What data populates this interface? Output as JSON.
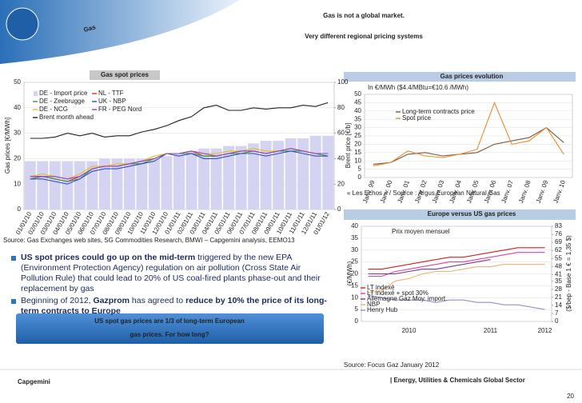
{
  "header": {
    "tag": "Gas",
    "title_lines": [
      "Gas is not a global market.",
      "Very different regional pricing systems"
    ]
  },
  "chart_data": [
    {
      "type": "line",
      "title": "Gas spot prices",
      "y_label": "Gas prices [€/MWh]",
      "y2_label": "Brent price [€/b]",
      "categories": [
        "01/01/10",
        "02/01/10",
        "03/01/10",
        "04/01/10",
        "05/01/10",
        "06/01/10",
        "07/01/10",
        "08/01/10",
        "09/01/10",
        "10/01/10",
        "11/01/10",
        "12/01/10",
        "01/01/11",
        "02/01/11",
        "03/01/11",
        "04/01/11",
        "05/01/11",
        "06/01/11",
        "07/01/11",
        "08/01/11",
        "09/01/11",
        "10/01/11",
        "11/01/11",
        "12/01/11",
        "01/01/12"
      ],
      "ylim": [
        0,
        50
      ],
      "yticks": [
        0,
        10,
        20,
        30,
        40,
        50
      ],
      "y2lim": [
        0,
        100
      ],
      "y2ticks": [
        0,
        20,
        40,
        60,
        80,
        100
      ],
      "grid": true,
      "series": [
        {
          "name": "DE - Import price",
          "color": "#d4d4f2",
          "mark": "bar",
          "values": [
            19,
            19,
            19,
            19,
            19,
            19,
            20,
            20,
            20,
            20,
            20,
            21,
            22,
            23,
            24,
            24,
            25,
            25,
            26,
            27,
            27,
            28,
            28,
            29,
            29
          ]
        },
        {
          "name": "NL - TTF",
          "color": "#e03030",
          "values": [
            13,
            13,
            12,
            11,
            13,
            16,
            17,
            17,
            18,
            19,
            20,
            22,
            22,
            23,
            21,
            21,
            22,
            23,
            23,
            22,
            23,
            24,
            23,
            22,
            22
          ]
        },
        {
          "name": "DE - Zeebrugge",
          "color": "#30a030",
          "values": [
            12,
            13,
            12,
            11,
            12,
            16,
            17,
            17,
            18,
            18,
            20,
            22,
            22,
            22,
            21,
            21,
            22,
            22,
            23,
            22,
            23,
            23,
            23,
            22,
            21
          ]
        },
        {
          "name": "UK - NBP",
          "color": "#3050c0",
          "values": [
            12,
            12,
            11,
            10,
            12,
            15,
            16,
            16,
            17,
            18,
            19,
            22,
            21,
            22,
            20,
            20,
            21,
            22,
            22,
            21,
            22,
            23,
            22,
            21,
            21
          ]
        },
        {
          "name": "DE - NCG",
          "color": "#e0c020",
          "values": [
            13,
            14,
            13,
            12,
            14,
            17,
            17,
            18,
            18,
            19,
            21,
            22,
            22,
            23,
            22,
            22,
            23,
            23,
            24,
            23,
            23,
            24,
            23,
            22,
            22
          ]
        },
        {
          "name": "FR - PEG Nord",
          "color": "#a040c0",
          "values": [
            13,
            13,
            13,
            12,
            13,
            16,
            17,
            17,
            18,
            19,
            20,
            22,
            22,
            23,
            22,
            21,
            22,
            23,
            23,
            22,
            23,
            24,
            23,
            22,
            22
          ]
        },
        {
          "name": "Brent month ahead",
          "color": "#202020",
          "axis": "y2",
          "values": [
            56,
            56,
            57,
            60,
            58,
            60,
            57,
            58,
            58,
            61,
            63,
            66,
            70,
            73,
            80,
            82,
            78,
            78,
            80,
            79,
            80,
            80,
            82,
            81,
            84
          ]
        }
      ]
    },
    {
      "type": "line",
      "title": "Gas prices evolution",
      "subtitle": "In €/MWh ($4.4/MBtu=€10.6 /MWh)",
      "note": "« Les Echos » / Source : Argus European Natural Gas",
      "categories": [
        "Janv. 99",
        "Janv. 00",
        "Janv. 01",
        "Janv. 02",
        "Janv. 03",
        "Janv. 04",
        "Janv. 05",
        "Janv. 06",
        "Janv. 07",
        "Janv. 08",
        "Janv. 09",
        "Janv. 10"
      ],
      "ylim": [
        0,
        50
      ],
      "yticks": [
        0,
        5,
        10,
        15,
        20,
        25,
        30,
        35,
        40,
        45,
        50
      ],
      "grid": true,
      "series": [
        {
          "name": "Long-term contracts price",
          "color": "#7a5a3a",
          "values": [
            8,
            9,
            14,
            15,
            13,
            14,
            15,
            20,
            22,
            24,
            30,
            21
          ]
        },
        {
          "name": "Spot price",
          "color": "#f08a30",
          "values": [
            7,
            9,
            16,
            13,
            12,
            14,
            17,
            45,
            20,
            22,
            30,
            14
          ]
        }
      ]
    },
    {
      "type": "line",
      "title": "Europe versus US gas prices",
      "subtitle": "Prix moyen mensuel",
      "y_label": "(€/MWh)",
      "y2_label": "($/bep - Base 1 € = 1,35 $)",
      "source": "Source: Focus Gaz January 2012",
      "categories": [
        null,
        null,
        null,
        "2010",
        null,
        null,
        null,
        null,
        null,
        "2011",
        null,
        null,
        null,
        "2012"
      ],
      "ylim": [
        0,
        40
      ],
      "yticks": [
        0,
        5,
        10,
        15,
        20,
        25,
        30,
        35,
        40
      ],
      "y2lim": [
        0,
        83
      ],
      "y2ticks": [
        0,
        7,
        14,
        21,
        28,
        35,
        41,
        48,
        55,
        62,
        69,
        76,
        83
      ],
      "grid": true,
      "series": [
        {
          "name": "LT indexé",
          "color": "#d02020",
          "values": [
            22,
            22,
            23,
            24,
            25,
            26,
            27,
            27,
            28,
            29,
            30,
            31,
            31,
            31
          ]
        },
        {
          "name": "LT indexé + spot 30%",
          "color": "#e040a0",
          "values": [
            19,
            19,
            21,
            22,
            23,
            24,
            25,
            25,
            26,
            27,
            28,
            29,
            29,
            29
          ]
        },
        {
          "name": "Allemagne Gaz Moy. import.",
          "color": "#7a3a8a",
          "values": [
            20,
            20,
            20,
            21,
            22,
            22,
            23,
            24,
            25,
            26,
            null,
            null,
            null,
            null
          ]
        },
        {
          "name": "NBP",
          "color": "#f0b070",
          "values": [
            12,
            13,
            17,
            18,
            20,
            21,
            21,
            22,
            23,
            23,
            24,
            24,
            24,
            24
          ]
        },
        {
          "name": "Henry Hub",
          "color": "#9090d0",
          "values": [
            11,
            10,
            9,
            9,
            9,
            8,
            9,
            9,
            8,
            8,
            7,
            7,
            6,
            5
          ]
        }
      ]
    }
  ],
  "source": "Source: Gas Exchanges web sites, SG Commodities Research, BMWI – Capgemini analysis, EEMO13",
  "bullets": [
    [
      {
        "text": "US spot prices could go up on the mid-term",
        "bold": true
      },
      {
        "text": " triggered by the new EPA (Environment Protection Agency) regulation on air pollution (Cross State Air Pollution Rule) that could lead to 20% of US coal-fired plants phase-out and their replacement by gas",
        "bold": false
      }
    ],
    [
      {
        "text": "Beginning of 2012, ",
        "bold": false
      },
      {
        "text": "Gazprom",
        "bold": true
      },
      {
        "text": " has agreed to ",
        "bold": false
      },
      {
        "text": "reduce by 10% the price of its long-term contracts to Europe",
        "bold": true
      }
    ]
  ],
  "callout": [
    "US spot gas prices are 1/3 of long-term European",
    "gas prices. For how long?"
  ],
  "footer": {
    "logo": "Capgemini",
    "sector": "| Energy, Utilities & Chemicals Global Sector",
    "page": "20"
  }
}
